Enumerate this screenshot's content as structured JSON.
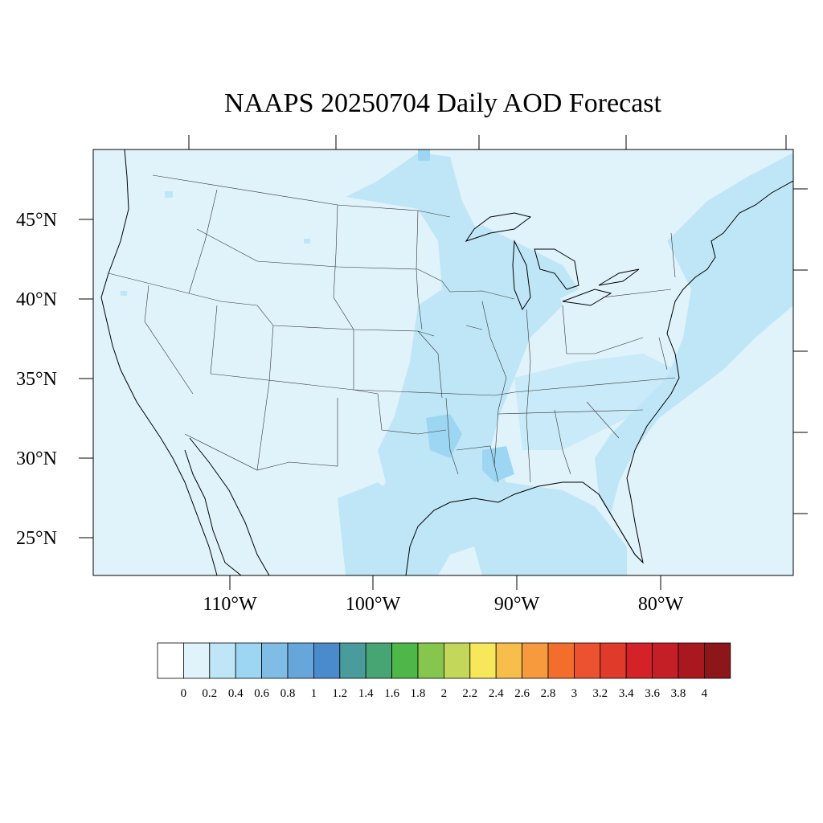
{
  "title": "NAAPS 20250704 Daily AOD Forecast",
  "lat_labels": [
    "45°N",
    "40°N",
    "35°N",
    "30°N",
    "25°N"
  ],
  "lon_labels": [
    "110°W",
    "100°W",
    "90°W",
    "80°W"
  ],
  "colorbar": {
    "labels": [
      "0",
      "0.2",
      "0.4",
      "0.6",
      "0.8",
      "1",
      "1.2",
      "1.4",
      "1.6",
      "1.8",
      "2",
      "2.2",
      "2.4",
      "2.6",
      "2.8",
      "3",
      "3.2",
      "3.4",
      "3.6",
      "3.8",
      "4"
    ],
    "colors": [
      "#ffffff",
      "#e0f3fb",
      "#bfe6f7",
      "#9dd6f3",
      "#80bde6",
      "#67a6da",
      "#4a8ccb",
      "#4a9b9b",
      "#46a573",
      "#4db748",
      "#86c54e",
      "#c3d75a",
      "#f7e75a",
      "#f7be4b",
      "#f79a3d",
      "#f36d2c",
      "#ec5230",
      "#e03a2b",
      "#d52229",
      "#c41e26",
      "#a9181e",
      "#8d161b"
    ]
  },
  "chart_data": {
    "type": "heatmap",
    "title": "NAAPS 20250704 Daily AOD Forecast",
    "variable": "AOD",
    "lat_range": [
      22.5,
      49.5
    ],
    "lon_range": [
      -119,
      -70
    ],
    "colorbar_ticks": [
      0,
      0.2,
      0.4,
      0.6,
      0.8,
      1,
      1.2,
      1.4,
      1.6,
      1.8,
      2,
      2.2,
      2.4,
      2.6,
      2.8,
      3,
      3.2,
      3.4,
      3.6,
      3.8,
      4
    ],
    "field_summary": {
      "background_aod": "0-0.2",
      "elevated_regions_aod": "0.2-0.4",
      "localized_peaks_aod": "0.4-0.6"
    }
  }
}
